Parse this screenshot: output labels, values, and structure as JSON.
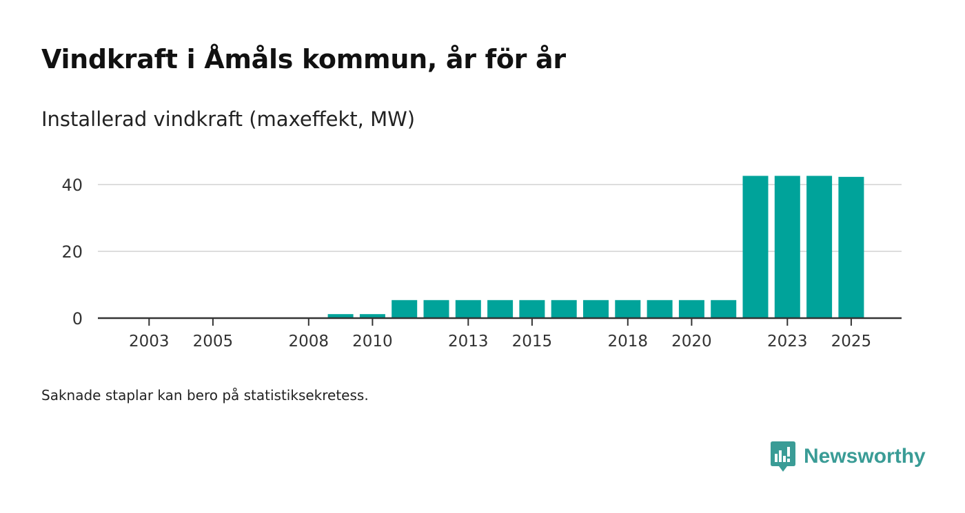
{
  "title": "Vindkraft i Åmåls kommun, år för år",
  "subtitle": "Installerad vindkraft (maxeffekt, MW)",
  "footnote": "Saknade staplar kan bero på statistiksekretess.",
  "brand": {
    "name": "Newsworthy",
    "icon": "newsworthy-logo-icon"
  },
  "colors": {
    "bar": "#00a39a",
    "grid": "#dddddd",
    "axis": "#333333",
    "brand": "#3a9c96"
  },
  "chart_data": {
    "type": "bar",
    "title": "Vindkraft i Åmåls kommun, år för år",
    "ylabel": "Installerad vindkraft (maxeffekt, MW)",
    "xlabel": "",
    "categories": [
      "2003",
      "2004",
      "2005",
      "2006",
      "2007",
      "2008",
      "2009",
      "2010",
      "2011",
      "2012",
      "2013",
      "2014",
      "2015",
      "2016",
      "2017",
      "2018",
      "2019",
      "2020",
      "2021",
      "2022",
      "2023",
      "2024",
      "2025"
    ],
    "values": [
      0,
      0,
      0,
      0,
      0,
      0,
      1.2,
      1.2,
      5.4,
      5.4,
      5.4,
      5.4,
      5.4,
      5.4,
      5.4,
      5.4,
      5.4,
      5.4,
      5.4,
      42.6,
      42.6,
      42.6,
      42.3
    ],
    "x_tick_labels": [
      "2003",
      "2005",
      "2008",
      "2010",
      "2013",
      "2015",
      "2018",
      "2020",
      "2023",
      "2025"
    ],
    "y_ticks": [
      0,
      20,
      40
    ],
    "ylim": [
      0,
      44
    ],
    "grid": true,
    "legend": "none"
  }
}
